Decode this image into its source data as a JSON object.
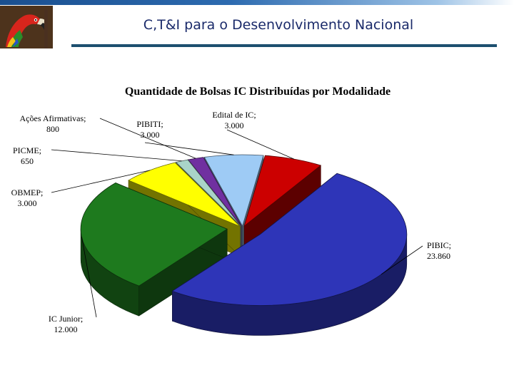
{
  "header": {
    "title": "C,T&I para o Desenvolvimento Nacional",
    "logo_icon": "macaw-parrot-icon"
  },
  "chart_data": {
    "type": "pie",
    "title": "Quantidade de Bolsas IC Distribuídas por Modalidade",
    "three_d": true,
    "exploded": true,
    "slices": [
      {
        "name": "PIBIC",
        "value": 23860,
        "label_line1": "PIBIC;",
        "label_line2": "23.860",
        "color": "#2e35b8"
      },
      {
        "name": "IC Junior",
        "value": 12000,
        "label_line1": "IC Junior;",
        "label_line2": "12.000",
        "color": "#1e7a1e"
      },
      {
        "name": "OBMEP",
        "value": 3000,
        "label_line1": "OBMEP;",
        "label_line2": "3.000",
        "color": "#ffff00"
      },
      {
        "name": "PICME",
        "value": 650,
        "label_line1": "PICME;",
        "label_line2": "650",
        "color": "#a9d4c8"
      },
      {
        "name": "Ações Afirmativas",
        "value": 800,
        "label_line1": "Ações Afirmativas;",
        "label_line2": "800",
        "color": "#7030a0"
      },
      {
        "name": "PIBITI",
        "value": 3000,
        "label_line1": "PIBITI;",
        "label_line2": "3.000",
        "color": "#9ecbf5"
      },
      {
        "name": "Edital de IC",
        "value": 3000,
        "label_line1": "Edital de IC;",
        "label_line2": "3.000",
        "color": "#cc0000"
      }
    ]
  }
}
